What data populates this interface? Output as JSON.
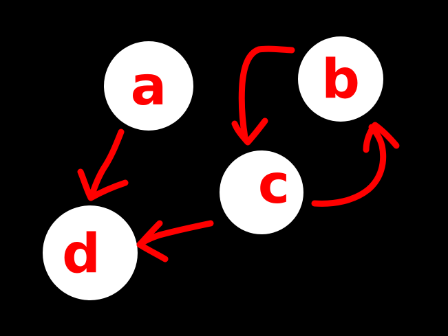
{
  "diagram": {
    "background": "#000000",
    "node_fill": "#ffffff",
    "ink_color": "#ff0000",
    "nodes": [
      {
        "id": "a",
        "label": "a"
      },
      {
        "id": "b",
        "label": "b"
      },
      {
        "id": "c",
        "label": "c"
      },
      {
        "id": "d",
        "label": "d"
      }
    ],
    "edges": [
      {
        "from": "a",
        "to": "d"
      },
      {
        "from": "b",
        "to": "c"
      },
      {
        "from": "c",
        "to": "b"
      },
      {
        "from": "c",
        "to": "d"
      }
    ]
  }
}
